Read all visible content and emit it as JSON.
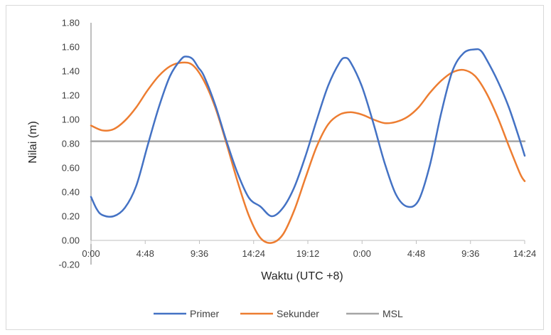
{
  "chart_data": {
    "type": "line",
    "title": "",
    "xlabel": "Waktu (UTC +8)",
    "ylabel": "Nilai (m)",
    "ylim": [
      -0.2,
      1.8
    ],
    "yticks": [
      "-0.20",
      "0.00",
      "0.20",
      "0.40",
      "0.60",
      "0.80",
      "1.00",
      "1.20",
      "1.40",
      "1.60",
      "1.80"
    ],
    "xlim": [
      0,
      38.4
    ],
    "xtick_values": [
      0,
      4.8,
      9.6,
      14.4,
      19.2,
      24,
      28.8,
      33.6,
      38.4
    ],
    "xtick_labels": [
      "0:00",
      "4:48",
      "9:36",
      "14:24",
      "19:12",
      "0:00",
      "4:48",
      "9:36",
      "14:24"
    ],
    "grid": false,
    "legend": "bottom",
    "series": [
      {
        "name": "Primer",
        "color": "#4472C4",
        "x": [
          0,
          0.5,
          1,
          2,
          3,
          4,
          5,
          6,
          7,
          8,
          8.5,
          9,
          9.5,
          10,
          11,
          12,
          13,
          14,
          15,
          16,
          17,
          18,
          19,
          20,
          21,
          22,
          22.5,
          23,
          24,
          25,
          26,
          27,
          28,
          29,
          30,
          31,
          32,
          33,
          34,
          34.5,
          35,
          36,
          37,
          38,
          38.4
        ],
        "y": [
          0.36,
          0.26,
          0.21,
          0.2,
          0.27,
          0.45,
          0.78,
          1.1,
          1.36,
          1.5,
          1.52,
          1.5,
          1.43,
          1.36,
          1.12,
          0.82,
          0.55,
          0.35,
          0.28,
          0.2,
          0.27,
          0.44,
          0.7,
          1.0,
          1.28,
          1.47,
          1.51,
          1.47,
          1.27,
          0.97,
          0.64,
          0.38,
          0.28,
          0.33,
          0.62,
          1.05,
          1.4,
          1.55,
          1.58,
          1.57,
          1.5,
          1.32,
          1.1,
          0.82,
          0.7
        ]
      },
      {
        "name": "Sekunder",
        "color": "#ED7D31",
        "x": [
          0,
          1,
          2,
          3,
          4,
          5,
          6,
          7,
          8,
          9,
          10,
          11,
          12,
          13,
          14,
          15,
          16,
          17,
          18,
          19,
          20,
          21,
          22,
          23,
          24,
          25,
          26,
          27,
          28,
          29,
          30,
          31,
          32,
          33,
          34,
          35,
          36,
          37,
          38,
          38.4
        ],
        "y": [
          0.95,
          0.91,
          0.92,
          0.99,
          1.1,
          1.24,
          1.36,
          1.44,
          1.47,
          1.45,
          1.32,
          1.1,
          0.8,
          0.48,
          0.2,
          0.02,
          -0.02,
          0.05,
          0.25,
          0.52,
          0.78,
          0.96,
          1.04,
          1.06,
          1.04,
          1.0,
          0.97,
          0.98,
          1.02,
          1.1,
          1.22,
          1.32,
          1.39,
          1.41,
          1.36,
          1.22,
          1.02,
          0.78,
          0.55,
          0.49
        ]
      },
      {
        "name": "MSL",
        "color": "#A5A5A5",
        "x": [
          0,
          38.4
        ],
        "y": [
          0.82,
          0.82
        ]
      }
    ]
  }
}
